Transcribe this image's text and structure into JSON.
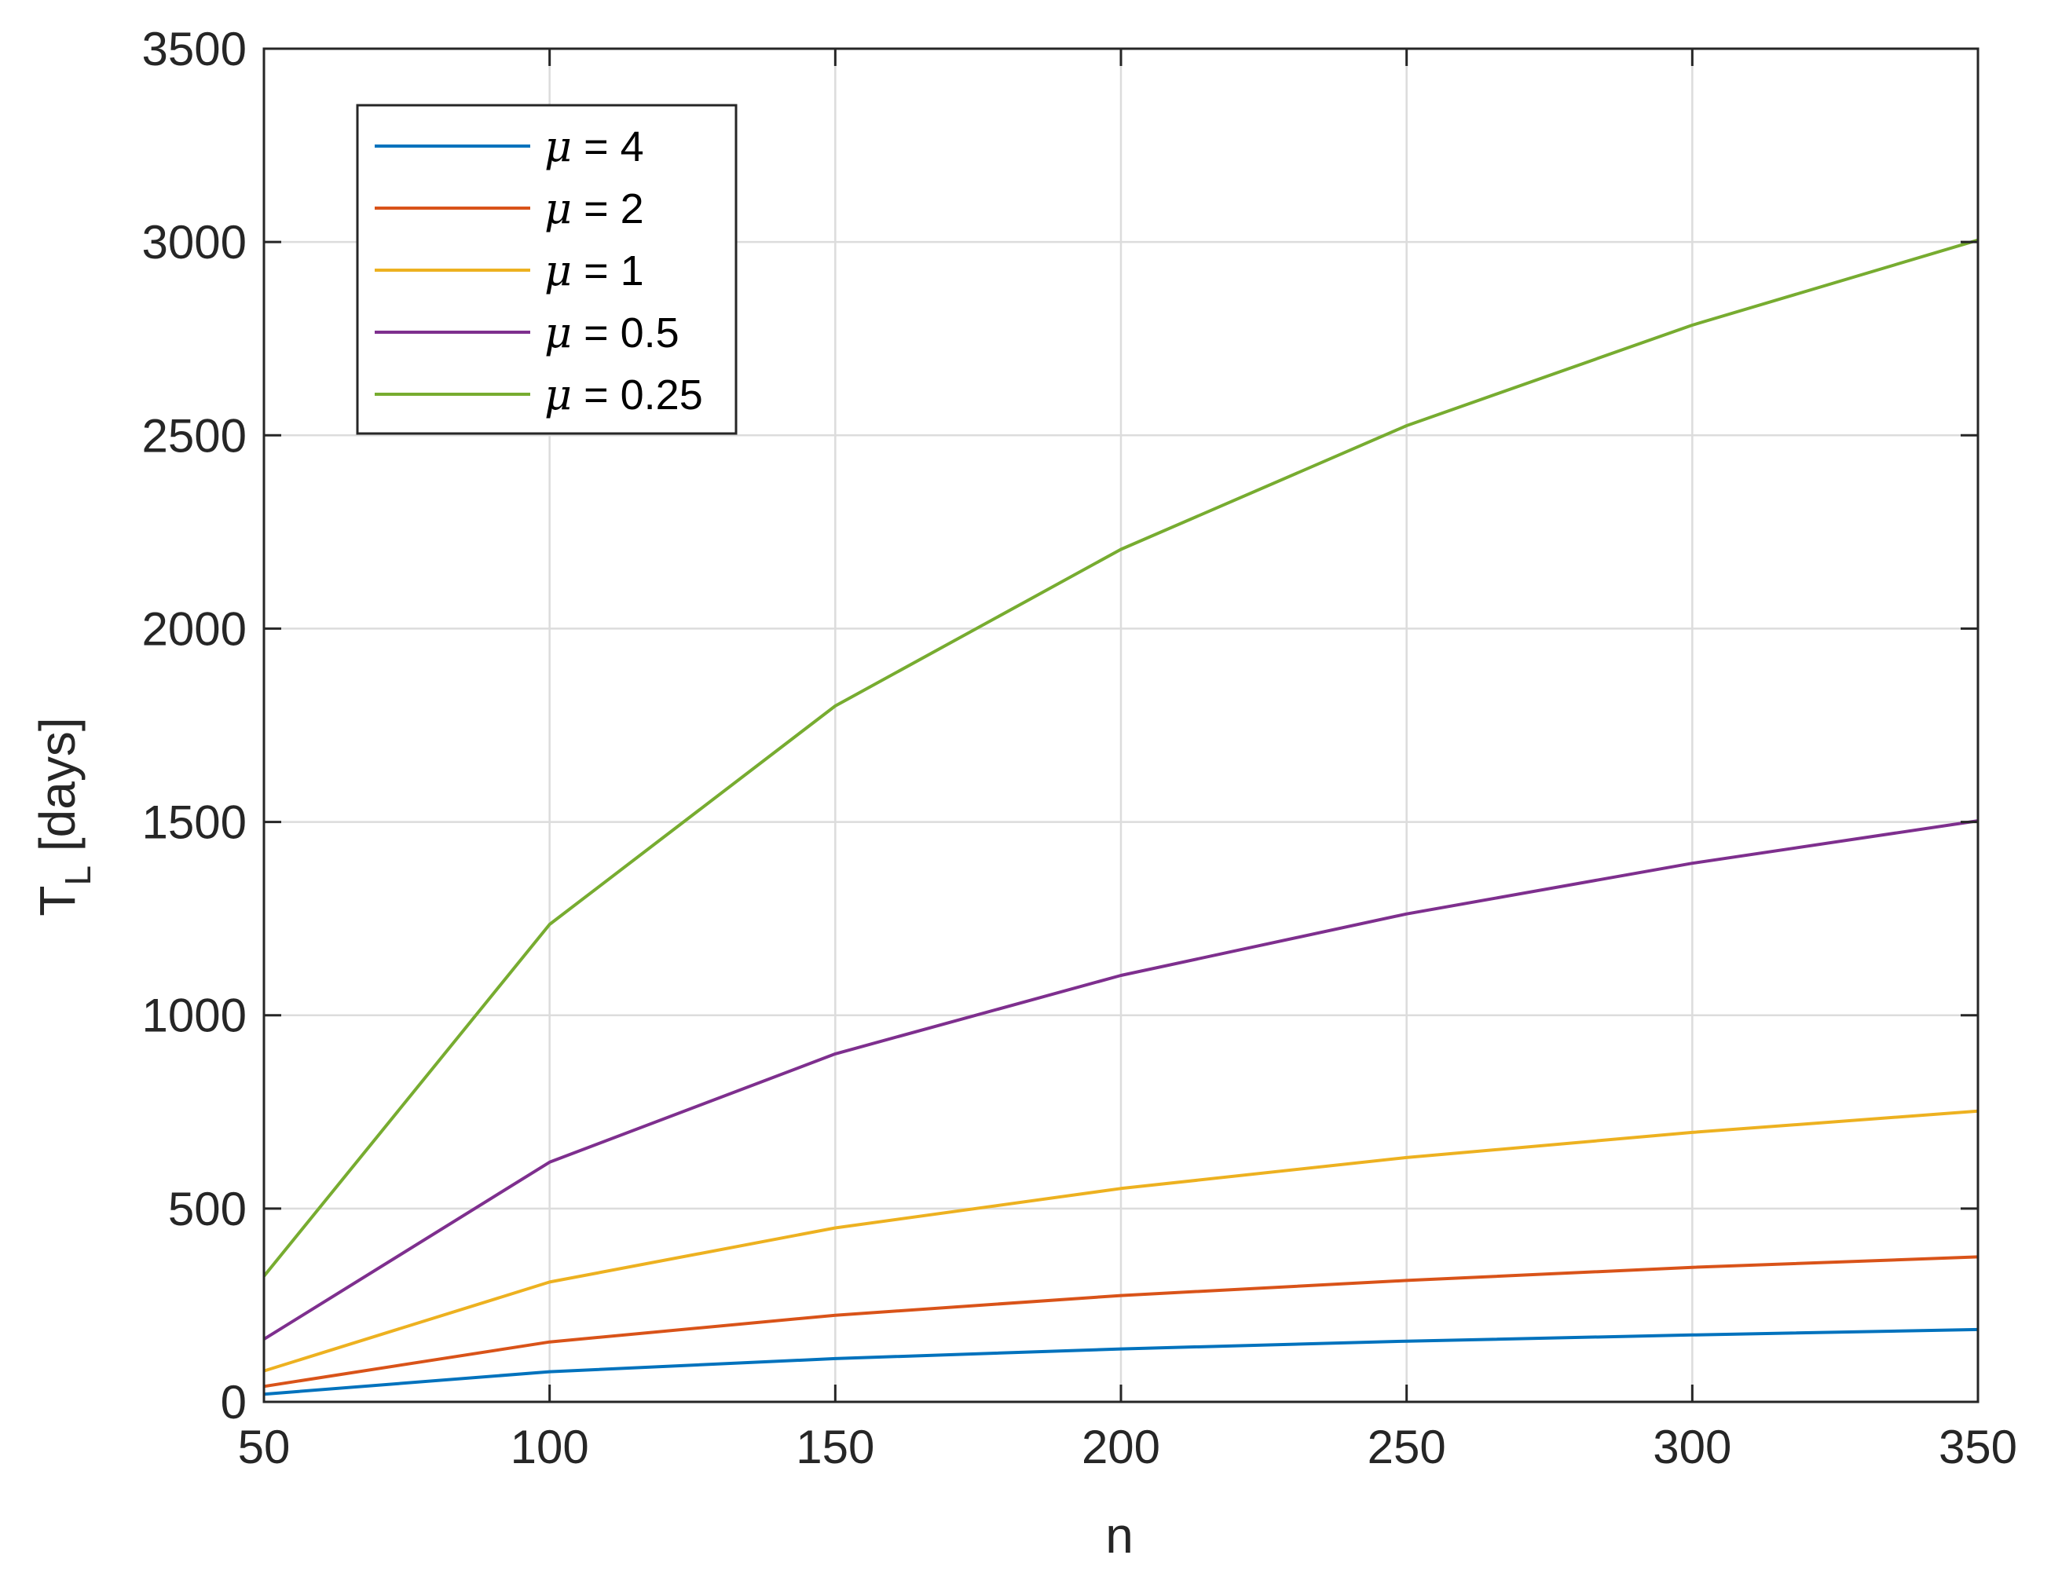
{
  "chart_data": {
    "type": "line",
    "title": "",
    "xlabel": "n",
    "ylabel_main": "T",
    "ylabel_sub": "L",
    "ylabel_unit": "[days]",
    "x": [
      50,
      100,
      150,
      200,
      250,
      300,
      350
    ],
    "xlim": [
      50,
      350
    ],
    "ylim": [
      0,
      3500
    ],
    "xticks": [
      "50",
      "100",
      "150",
      "200",
      "250",
      "300",
      "350"
    ],
    "yticks": [
      "0",
      "500",
      "1000",
      "1500",
      "2000",
      "2500",
      "3000",
      "3500"
    ],
    "grid": true,
    "legend_position": "top-left",
    "series": [
      {
        "name": "μ = 4",
        "mu_symbol": "μ",
        "mu_value": " = 4",
        "color": "#0072BD",
        "values": [
          20,
          78,
          112,
          137,
          157,
          173,
          187
        ]
      },
      {
        "name": "μ = 2",
        "mu_symbol": "μ",
        "mu_value": " = 2",
        "color": "#D95319",
        "values": [
          40,
          155,
          224,
          275,
          314,
          348,
          375
        ]
      },
      {
        "name": "μ = 1",
        "mu_symbol": "μ",
        "mu_value": " = 1",
        "color": "#EDB120",
        "values": [
          80,
          310,
          450,
          552,
          632,
          697,
          752
        ]
      },
      {
        "name": "μ = 0.5",
        "mu_symbol": "μ",
        "mu_value": " = 0.5",
        "color": "#7E2F8E",
        "values": [
          162,
          620,
          900,
          1103,
          1262,
          1393,
          1503
        ]
      },
      {
        "name": "μ = 0.25",
        "mu_symbol": "μ",
        "mu_value": " = 0.25",
        "color": "#77AC30",
        "values": [
          325,
          1235,
          1800,
          2205,
          2525,
          2785,
          3005
        ]
      }
    ]
  }
}
